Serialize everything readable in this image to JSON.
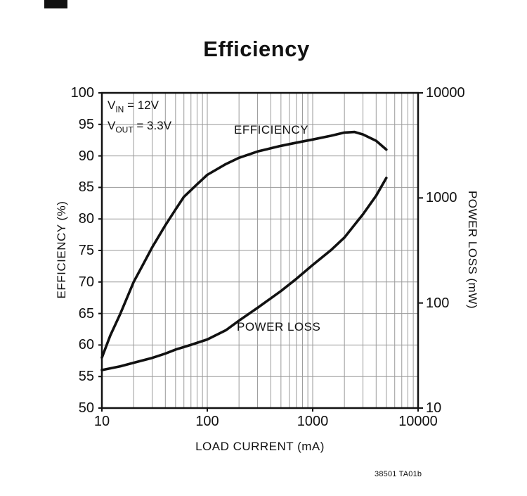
{
  "page": {
    "title": "Efficiency",
    "caption": "38501 TA01b"
  },
  "chart_data": {
    "type": "line",
    "title": "Efficiency",
    "x_axis": {
      "label": "LOAD CURRENT (mA)",
      "scale": "log",
      "min": 10,
      "max": 10000,
      "ticks": [
        10,
        100,
        1000,
        10000
      ]
    },
    "y_left_axis": {
      "label": "EFFICIENCY (%)",
      "scale": "linear",
      "min": 50,
      "max": 100,
      "tick_step": 5,
      "ticks": [
        100,
        95,
        90,
        85,
        80,
        75,
        70,
        65,
        60,
        55,
        50
      ]
    },
    "y_right_axis": {
      "label": "POWER LOSS (mW)",
      "scale": "log",
      "min": 10,
      "max": 10000,
      "ticks": [
        10000,
        1000,
        100,
        10
      ]
    },
    "grid": {
      "horizontal": "every 5 on left axis",
      "vertical": "log minor lines each decade",
      "color": "#9a9a9a"
    },
    "annotations": [
      {
        "base": "V",
        "sub": "IN",
        "rest": " = 12V"
      },
      {
        "base": "V",
        "sub": "OUT",
        "rest": " = 3.3V"
      }
    ],
    "series": [
      {
        "name": "EFFICIENCY",
        "axis": "left",
        "units": "%",
        "color": "#111111",
        "points": [
          [
            10,
            58
          ],
          [
            12,
            61.5
          ],
          [
            15,
            65
          ],
          [
            20,
            70
          ],
          [
            25,
            73
          ],
          [
            30,
            75.5
          ],
          [
            40,
            79
          ],
          [
            50,
            81.5
          ],
          [
            60,
            83.5
          ],
          [
            80,
            85.5
          ],
          [
            100,
            87
          ],
          [
            150,
            88.7
          ],
          [
            200,
            89.7
          ],
          [
            300,
            90.7
          ],
          [
            400,
            91.2
          ],
          [
            500,
            91.6
          ],
          [
            700,
            92.1
          ],
          [
            1000,
            92.6
          ],
          [
            1500,
            93.2
          ],
          [
            2000,
            93.7
          ],
          [
            2500,
            93.8
          ],
          [
            3000,
            93.4
          ],
          [
            4000,
            92.4
          ],
          [
            5000,
            91
          ]
        ]
      },
      {
        "name": "POWER LOSS",
        "axis": "right",
        "units": "mW",
        "color": "#111111",
        "points": [
          [
            10,
            23
          ],
          [
            15,
            25
          ],
          [
            20,
            27
          ],
          [
            30,
            30
          ],
          [
            40,
            33
          ],
          [
            50,
            36
          ],
          [
            70,
            40
          ],
          [
            100,
            45
          ],
          [
            150,
            55
          ],
          [
            200,
            68
          ],
          [
            300,
            90
          ],
          [
            500,
            130
          ],
          [
            700,
            170
          ],
          [
            1000,
            230
          ],
          [
            1500,
            320
          ],
          [
            2000,
            420
          ],
          [
            3000,
            700
          ],
          [
            4000,
            1050
          ],
          [
            5000,
            1550
          ]
        ]
      }
    ]
  }
}
